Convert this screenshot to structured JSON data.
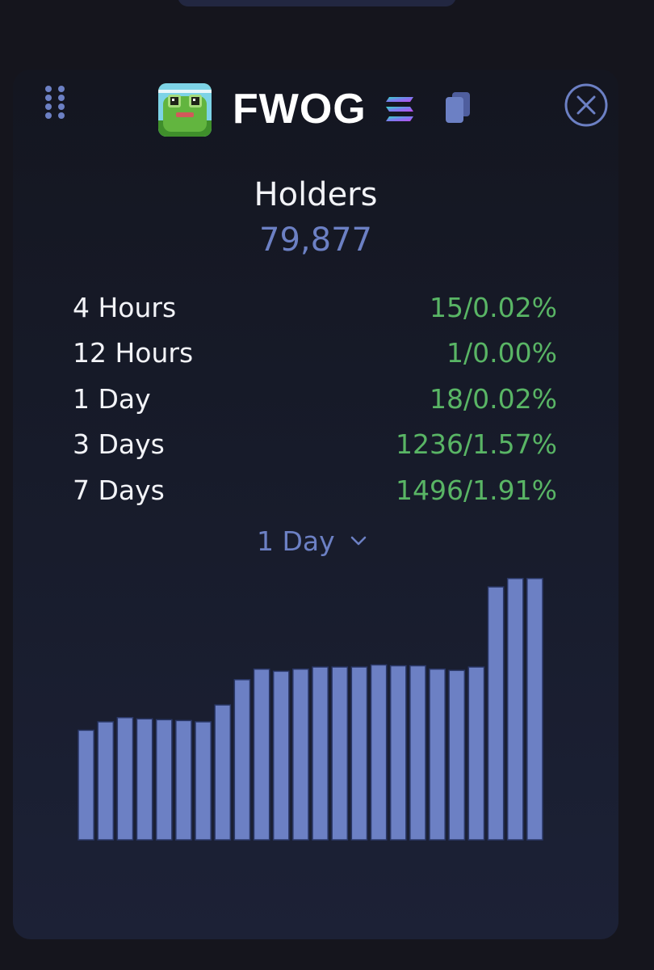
{
  "token": {
    "name": "FWOG",
    "logo_icon": "frog-avatar-icon",
    "chain_icon": "solana-icon",
    "copy_icon": "copy-icon",
    "close_icon": "close-icon",
    "drag_icon": "drag-handle-icon"
  },
  "holders": {
    "label": "Holders",
    "value": "79,877"
  },
  "stats": [
    {
      "label": "4 Hours",
      "count": "15",
      "percent": "0.02%"
    },
    {
      "label": "12 Hours",
      "count": "1",
      "percent": "0.00%"
    },
    {
      "label": "1 Day",
      "count": "18",
      "percent": "0.02%"
    },
    {
      "label": "3 Days",
      "count": "1236",
      "percent": "1.57%"
    },
    {
      "label": "7 Days",
      "count": "1496",
      "percent": "1.91%"
    }
  ],
  "period_selector": {
    "selected": "1 Day",
    "icon": "chevron-down-icon"
  },
  "colors": {
    "accent": "#6c80c4",
    "positive": "#59b565",
    "text": "#f2f3f7",
    "background": "#15151d"
  },
  "chart_data": {
    "type": "bar",
    "values": [
      79859,
      79861,
      79862,
      79861.7,
      79861.5,
      79861.3,
      79861,
      79865,
      79871,
      79873.5,
      79873,
      79873.5,
      79874,
      79874,
      79874,
      79874.5,
      79874.3,
      79874.3,
      79873.5,
      79873.2,
      79874,
      79893,
      79895,
      79895
    ],
    "ylim": [
      79833,
      79898
    ],
    "grid": false,
    "legend": "none"
  }
}
